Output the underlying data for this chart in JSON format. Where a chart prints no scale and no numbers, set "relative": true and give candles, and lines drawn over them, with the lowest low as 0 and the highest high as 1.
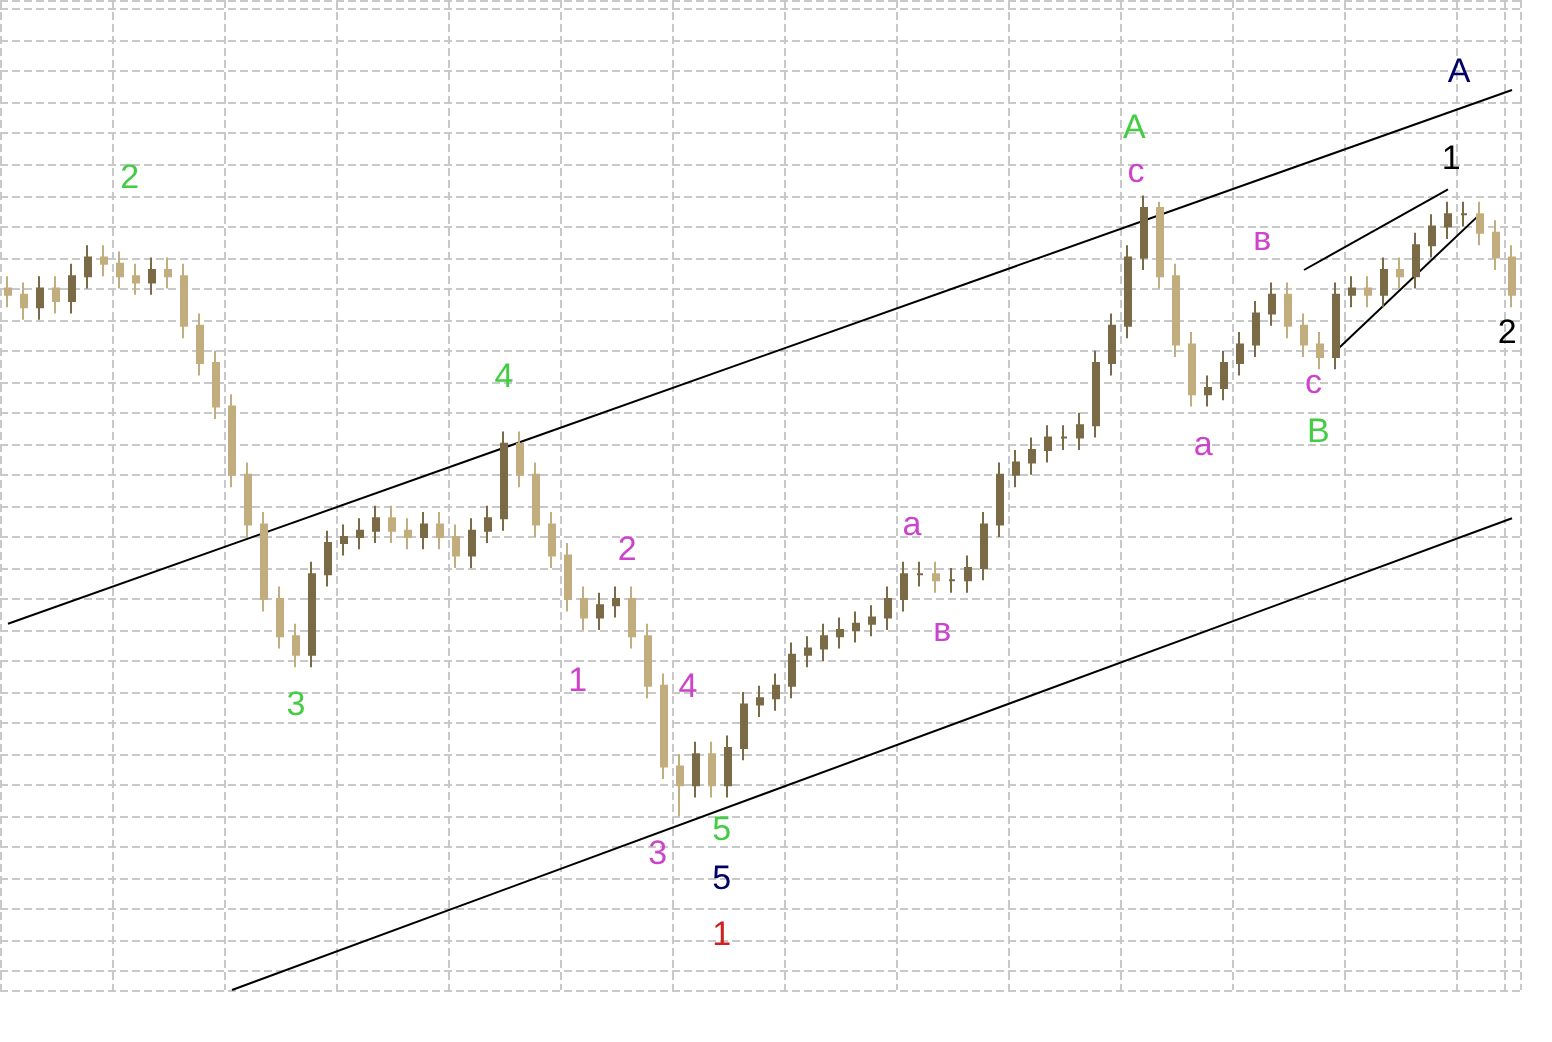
{
  "chart_data": {
    "type": "candlestick",
    "relative": true,
    "grid": true,
    "categories": [
      null,
      null,
      null,
      null,
      null,
      null,
      null,
      null,
      null,
      null,
      null,
      null,
      null,
      null,
      null,
      null,
      null,
      null,
      null,
      null,
      null,
      null,
      null,
      null,
      null,
      null,
      null,
      null,
      null,
      null,
      null,
      null,
      null,
      null,
      null,
      null,
      null,
      null,
      null,
      null,
      null,
      null,
      null,
      null,
      null,
      null,
      null,
      null,
      null,
      null,
      null,
      null,
      null,
      null,
      null,
      null,
      null,
      null,
      null,
      null,
      null,
      null,
      null,
      null,
      null,
      null,
      null,
      null,
      null,
      null,
      null,
      null,
      null,
      null,
      null,
      null,
      null,
      null,
      null,
      null,
      null,
      null,
      null,
      null,
      null,
      null,
      null,
      null,
      null,
      null,
      null,
      null,
      null,
      null,
      null
    ],
    "series": [
      {
        "type": "candlestick",
        "colors": [
          "#c2ad7e",
          "#c2ad7e",
          "#7a6a45",
          "#c2ad7e",
          "#7a6a45",
          "#7a6a45",
          "#c2ad7e",
          "#c2ad7e",
          "#c2ad7e",
          "#7a6a45",
          "#c2ad7e",
          "#c2ad7e",
          "#c2ad7e",
          "#c2ad7e",
          "#c2ad7e",
          "#c2ad7e",
          "#c2ad7e",
          "#c2ad7e",
          "#c2ad7e",
          "#7a6a45",
          "#7a6a45",
          "#7a6a45",
          "#7a6a45",
          "#7a6a45",
          "#c2ad7e",
          "#c2ad7e",
          "#7a6a45",
          "#c2ad7e",
          "#c2ad7e",
          "#7a6a45",
          "#7a6a45",
          "#7a6a45",
          "#c2ad7e",
          "#c2ad7e",
          "#c2ad7e",
          "#c2ad7e",
          "#c2ad7e",
          "#7a6a45",
          "#7a6a45",
          "#c2ad7e",
          "#c2ad7e",
          "#c2ad7e",
          "#c2ad7e",
          "#7a6a45",
          "#c2ad7e",
          "#7a6a45",
          "#7a6a45",
          "#7a6a45",
          "#7a6a45",
          "#7a6a45",
          "#7a6a45",
          "#7a6a45",
          "#7a6a45",
          "#7a6a45",
          "#7a6a45",
          "#7a6a45",
          "#7a6a45",
          "#7a6a45",
          "#c2ad7e",
          "#7a6a45",
          "#7a6a45",
          "#7a6a45",
          "#7a6a45",
          "#7a6a45",
          "#7a6a45",
          "#7a6a45",
          "#7a6a45",
          "#7a6a45",
          "#7a6a45",
          "#7a6a45",
          "#7a6a45",
          "#7a6a45",
          "#c2ad7e",
          "#c2ad7e",
          "#c2ad7e",
          "#7a6a45",
          "#7a6a45",
          "#7a6a45",
          "#7a6a45",
          "#7a6a45",
          "#c2ad7e",
          "#c2ad7e",
          "#c2ad7e",
          "#7a6a45",
          "#7a6a45",
          "#c2ad7e",
          "#7a6a45",
          "#c2ad7e",
          "#7a6a45",
          "#7a6a45",
          "#7a6a45",
          "#7a6a45",
          "#c2ad7e",
          "#c2ad7e",
          "#c2ad7e"
        ],
        "ohlc": [
          [
            0.85,
            0.87,
            0.82,
            0.84
          ],
          [
            0.84,
            0.86,
            0.8,
            0.82
          ],
          [
            0.82,
            0.87,
            0.8,
            0.85
          ],
          [
            0.85,
            0.87,
            0.81,
            0.83
          ],
          [
            0.83,
            0.89,
            0.81,
            0.87
          ],
          [
            0.87,
            0.92,
            0.85,
            0.9
          ],
          [
            0.9,
            0.92,
            0.87,
            0.89
          ],
          [
            0.89,
            0.91,
            0.85,
            0.87
          ],
          [
            0.87,
            0.89,
            0.84,
            0.86
          ],
          [
            0.86,
            0.9,
            0.84,
            0.88
          ],
          [
            0.88,
            0.9,
            0.85,
            0.87
          ],
          [
            0.87,
            0.89,
            0.77,
            0.79
          ],
          [
            0.79,
            0.81,
            0.71,
            0.73
          ],
          [
            0.73,
            0.75,
            0.64,
            0.66
          ],
          [
            0.66,
            0.68,
            0.53,
            0.55
          ],
          [
            0.55,
            0.57,
            0.45,
            0.47
          ],
          [
            0.47,
            0.49,
            0.33,
            0.35
          ],
          [
            0.35,
            0.37,
            0.27,
            0.29
          ],
          [
            0.29,
            0.31,
            0.24,
            0.26
          ],
          [
            0.26,
            0.41,
            0.24,
            0.39
          ],
          [
            0.39,
            0.46,
            0.37,
            0.44
          ],
          [
            0.44,
            0.47,
            0.42,
            0.45
          ],
          [
            0.45,
            0.48,
            0.43,
            0.46
          ],
          [
            0.46,
            0.5,
            0.44,
            0.48
          ],
          [
            0.48,
            0.5,
            0.44,
            0.46
          ],
          [
            0.46,
            0.48,
            0.43,
            0.45
          ],
          [
            0.45,
            0.49,
            0.43,
            0.47
          ],
          [
            0.47,
            0.49,
            0.43,
            0.45
          ],
          [
            0.45,
            0.47,
            0.4,
            0.42
          ],
          [
            0.42,
            0.48,
            0.4,
            0.46
          ],
          [
            0.46,
            0.5,
            0.44,
            0.48
          ],
          [
            0.48,
            0.62,
            0.46,
            0.6
          ],
          [
            0.6,
            0.62,
            0.53,
            0.55
          ],
          [
            0.55,
            0.57,
            0.45,
            0.47
          ],
          [
            0.47,
            0.49,
            0.4,
            0.42
          ],
          [
            0.42,
            0.44,
            0.33,
            0.35
          ],
          [
            0.35,
            0.37,
            0.3,
            0.32
          ],
          [
            0.32,
            0.36,
            0.3,
            0.34
          ],
          [
            0.34,
            0.37,
            0.32,
            0.35
          ],
          [
            0.35,
            0.37,
            0.27,
            0.29
          ],
          [
            0.29,
            0.31,
            0.19,
            0.21
          ],
          [
            0.21,
            0.23,
            0.06,
            0.08
          ],
          [
            0.08,
            0.1,
            0.0,
            0.05
          ],
          [
            0.05,
            0.12,
            0.03,
            0.1
          ],
          [
            0.1,
            0.12,
            0.03,
            0.05
          ],
          [
            0.05,
            0.13,
            0.03,
            0.11
          ],
          [
            0.11,
            0.2,
            0.09,
            0.18
          ],
          [
            0.18,
            0.21,
            0.16,
            0.19
          ],
          [
            0.19,
            0.23,
            0.17,
            0.21
          ],
          [
            0.21,
            0.28,
            0.19,
            0.26
          ],
          [
            0.26,
            0.29,
            0.24,
            0.27
          ],
          [
            0.27,
            0.31,
            0.25,
            0.29
          ],
          [
            0.29,
            0.32,
            0.27,
            0.3
          ],
          [
            0.3,
            0.33,
            0.28,
            0.31
          ],
          [
            0.31,
            0.34,
            0.29,
            0.32
          ],
          [
            0.32,
            0.37,
            0.3,
            0.35
          ],
          [
            0.35,
            0.41,
            0.33,
            0.39
          ],
          [
            0.39,
            0.41,
            0.37,
            0.39
          ],
          [
            0.39,
            0.41,
            0.36,
            0.38
          ],
          [
            0.38,
            0.4,
            0.36,
            0.38
          ],
          [
            0.38,
            0.42,
            0.36,
            0.4
          ],
          [
            0.4,
            0.49,
            0.38,
            0.47
          ],
          [
            0.47,
            0.57,
            0.45,
            0.55
          ],
          [
            0.55,
            0.59,
            0.53,
            0.57
          ],
          [
            0.57,
            0.61,
            0.55,
            0.59
          ],
          [
            0.59,
            0.63,
            0.57,
            0.61
          ],
          [
            0.61,
            0.63,
            0.59,
            0.61
          ],
          [
            0.61,
            0.65,
            0.59,
            0.63
          ],
          [
            0.63,
            0.75,
            0.61,
            0.73
          ],
          [
            0.73,
            0.81,
            0.71,
            0.79
          ],
          [
            0.79,
            0.92,
            0.77,
            0.9
          ],
          [
            0.9,
            1.0,
            0.88,
            0.98
          ],
          [
            0.98,
            0.99,
            0.85,
            0.87
          ],
          [
            0.87,
            0.89,
            0.74,
            0.76
          ],
          [
            0.76,
            0.78,
            0.66,
            0.68
          ],
          [
            0.68,
            0.71,
            0.66,
            0.69
          ],
          [
            0.69,
            0.75,
            0.67,
            0.73
          ],
          [
            0.73,
            0.78,
            0.71,
            0.76
          ],
          [
            0.76,
            0.83,
            0.74,
            0.81
          ],
          [
            0.81,
            0.86,
            0.79,
            0.84
          ],
          [
            0.84,
            0.86,
            0.77,
            0.79
          ],
          [
            0.79,
            0.81,
            0.74,
            0.76
          ],
          [
            0.76,
            0.78,
            0.72,
            0.74
          ],
          [
            0.74,
            0.86,
            0.72,
            0.84
          ],
          [
            0.84,
            0.87,
            0.82,
            0.85
          ],
          [
            0.85,
            0.87,
            0.82,
            0.84
          ],
          [
            0.84,
            0.9,
            0.82,
            0.88
          ],
          [
            0.88,
            0.9,
            0.85,
            0.87
          ],
          [
            0.87,
            0.94,
            0.85,
            0.92
          ],
          [
            0.92,
            0.97,
            0.9,
            0.95
          ],
          [
            0.95,
            0.99,
            0.93,
            0.97
          ],
          [
            0.97,
            0.99,
            0.95,
            0.97
          ],
          [
            0.97,
            0.99,
            0.92,
            0.94
          ],
          [
            0.94,
            0.96,
            0.88,
            0.9
          ],
          [
            0.9,
            0.92,
            0.82,
            0.84
          ]
        ]
      },
      {
        "type": "line",
        "color": "#000000",
        "values": [
          0.31,
          null,
          null,
          null,
          null,
          null,
          null,
          null,
          null,
          null,
          null,
          null,
          null,
          null,
          null,
          null,
          null,
          null,
          null,
          null,
          null,
          null,
          null,
          null,
          null,
          null,
          null,
          null,
          null,
          null,
          null,
          null,
          null,
          null,
          null,
          null,
          null,
          null,
          null,
          null,
          null,
          null,
          null,
          null,
          null,
          null,
          null,
          null,
          null,
          null,
          null,
          null,
          null,
          null,
          null,
          null,
          null,
          null,
          null,
          null,
          null,
          null,
          null,
          null,
          null,
          null,
          null,
          null,
          null,
          null,
          null,
          null,
          null,
          null,
          null,
          null,
          null,
          null,
          null,
          null,
          null,
          null,
          null,
          null,
          null,
          null,
          null,
          null,
          null,
          null,
          null,
          null,
          null,
          null,
          1.17
        ]
      },
      {
        "type": "line",
        "color": "#000000",
        "values": [
          null,
          null,
          null,
          null,
          null,
          null,
          null,
          null,
          null,
          null,
          null,
          null,
          null,
          null,
          -0.28,
          null,
          null,
          null,
          null,
          null,
          null,
          null,
          null,
          null,
          null,
          null,
          null,
          null,
          null,
          null,
          null,
          null,
          null,
          null,
          null,
          null,
          null,
          null,
          null,
          null,
          null,
          null,
          null,
          null,
          null,
          null,
          null,
          null,
          null,
          null,
          null,
          null,
          null,
          null,
          null,
          null,
          null,
          null,
          null,
          null,
          null,
          null,
          null,
          null,
          null,
          null,
          null,
          null,
          null,
          null,
          null,
          null,
          null,
          null,
          null,
          null,
          null,
          null,
          null,
          null,
          null,
          null,
          null,
          null,
          null,
          null,
          null,
          null,
          null,
          null,
          null,
          null,
          null,
          null,
          0.48
        ]
      },
      {
        "type": "line",
        "color": "#000000",
        "values": [
          null,
          null,
          null,
          null,
          null,
          null,
          null,
          null,
          null,
          null,
          null,
          null,
          null,
          null,
          null,
          null,
          null,
          null,
          null,
          null,
          null,
          null,
          null,
          null,
          null,
          null,
          null,
          null,
          null,
          null,
          null,
          null,
          null,
          null,
          null,
          null,
          null,
          null,
          null,
          null,
          null,
          null,
          null,
          null,
          null,
          null,
          null,
          null,
          null,
          null,
          null,
          null,
          null,
          null,
          null,
          null,
          null,
          null,
          null,
          null,
          null,
          null,
          null,
          null,
          null,
          null,
          null,
          null,
          null,
          null,
          null,
          null,
          null,
          null,
          null,
          null,
          null,
          null,
          null,
          null,
          null,
          0.88,
          null,
          null,
          null,
          null,
          null,
          null,
          null,
          null,
          1.01,
          null,
          null,
          null,
          null
        ]
      },
      {
        "type": "line",
        "color": "#000000",
        "values": [
          null,
          null,
          null,
          null,
          null,
          null,
          null,
          null,
          null,
          null,
          null,
          null,
          null,
          null,
          null,
          null,
          null,
          null,
          null,
          null,
          null,
          null,
          null,
          null,
          null,
          null,
          null,
          null,
          null,
          null,
          null,
          null,
          null,
          null,
          null,
          null,
          null,
          null,
          null,
          null,
          null,
          null,
          null,
          null,
          null,
          null,
          null,
          null,
          null,
          null,
          null,
          null,
          null,
          null,
          null,
          null,
          null,
          null,
          null,
          null,
          null,
          null,
          null,
          null,
          null,
          null,
          null,
          null,
          null,
          null,
          null,
          null,
          null,
          null,
          null,
          null,
          null,
          null,
          null,
          null,
          null,
          null,
          null,
          0.75,
          null,
          null,
          null,
          null,
          null,
          null,
          null,
          null,
          0.97,
          null,
          null
        ]
      }
    ],
    "annotations": [
      "2",
      "4",
      "3",
      "1",
      "2",
      "3",
      "4",
      "5",
      "5",
      "1",
      "a",
      "в",
      "A",
      "c",
      "a",
      "в",
      "c",
      "B",
      "A",
      "1",
      "2"
    ]
  }
}
